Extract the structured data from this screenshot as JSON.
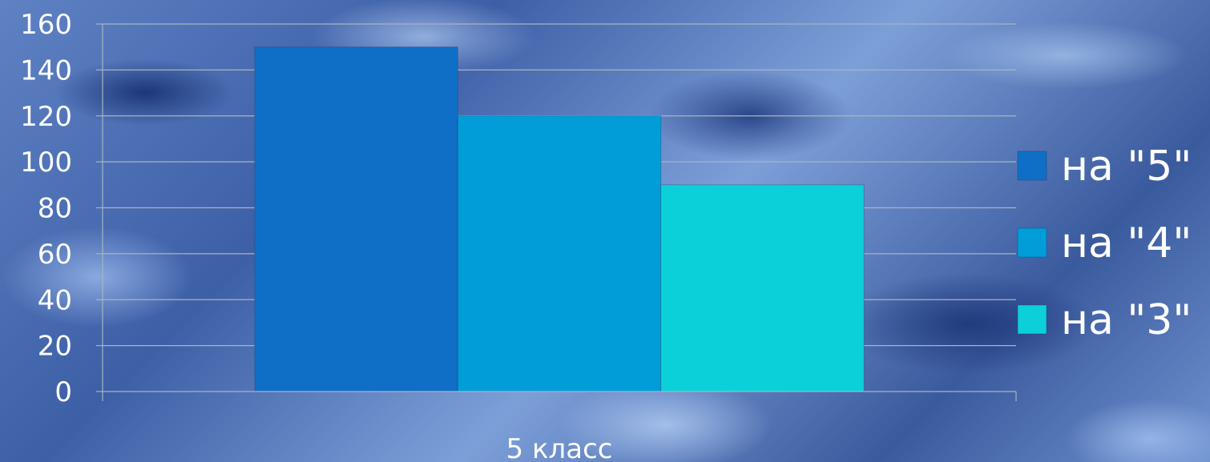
{
  "chart_data": {
    "type": "bar",
    "categories": [
      "5 класс"
    ],
    "series": [
      {
        "name": "на \"5\"",
        "values": [
          150
        ],
        "color": "#0f6fc6"
      },
      {
        "name": "на \"4\"",
        "values": [
          120
        ],
        "color": "#009dd9"
      },
      {
        "name": "на \"3\"",
        "values": [
          90
        ],
        "color": "#0bd0d9"
      }
    ],
    "yticks": [
      "0",
      "20",
      "40",
      "60",
      "80",
      "100",
      "120",
      "140",
      "160"
    ],
    "ylim": [
      0,
      160
    ],
    "grid": true,
    "legend_position": "right"
  }
}
